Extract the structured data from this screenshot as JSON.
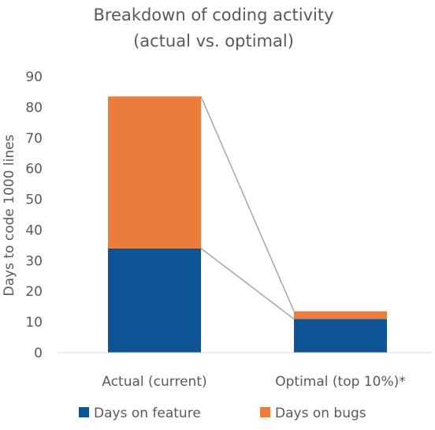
{
  "chart_data": {
    "type": "bar",
    "stacked": true,
    "title": [
      "Breakdown of coding activity",
      "(actual vs. optimal)"
    ],
    "xlabel": "",
    "ylabel": "Days to code 1000 lines",
    "ylim": [
      0,
      90
    ],
    "yticks": [
      0,
      10,
      20,
      30,
      40,
      50,
      60,
      70,
      80,
      90
    ],
    "categories": [
      "Actual (current)",
      "Optimal (top 10%)*"
    ],
    "series": [
      {
        "name": "Days on feature",
        "values": [
          34,
          11
        ],
        "color": "#0E5494"
      },
      {
        "name": "Days on bugs",
        "values": [
          49.5,
          2.5
        ],
        "color": "#EB7C3C"
      }
    ],
    "connector_lines": true,
    "grid": false,
    "legend": "bottom"
  }
}
